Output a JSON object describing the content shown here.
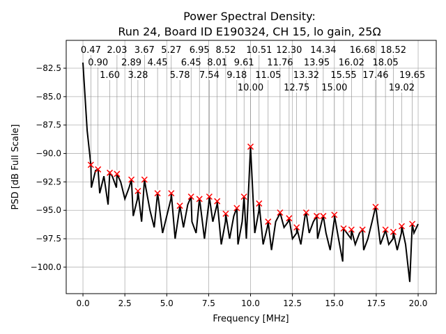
{
  "chart_data": {
    "type": "line",
    "title_line1": "Power Spectral Density:",
    "title_line2": "Run 24, Board ID E190324, CH 15, lo gain, 25Ω",
    "xlabel": "Frequency [MHz]",
    "ylabel": "PSD [dB Full Scale]",
    "xlim": [
      -1.0,
      21.08
    ],
    "ylim": [
      -102.33,
      -80.05
    ],
    "grid": true,
    "xticks": [
      0.0,
      2.5,
      5.0,
      7.5,
      10.0,
      12.5,
      15.0,
      17.5,
      20.0
    ],
    "xtick_labels": [
      "0.0",
      "2.5",
      "5.0",
      "7.5",
      "10.0",
      "12.5",
      "15.0",
      "17.5",
      "20.0"
    ],
    "yticks": [
      -82.5,
      -85.0,
      -87.5,
      -90.0,
      -92.5,
      -95.0,
      -97.5,
      -100.0
    ],
    "ytick_labels": [
      "−82.5",
      "−85.0",
      "−87.5",
      "−90.0",
      "−92.5",
      "−95.0",
      "−97.5",
      "−100.0"
    ],
    "line_color": "#000000",
    "marker_color": "#ff0000",
    "series_step": 0.25,
    "series": [
      -82.0,
      -88,
      -93,
      -91.5,
      -93.5,
      -92,
      -94.5,
      -92,
      -93,
      -92.5,
      -94,
      -93,
      -95.5,
      -94,
      -96,
      -93,
      -95,
      -96.5,
      -94,
      -97,
      -95.5,
      -94,
      -97.5,
      -95,
      -96.5,
      -94.5,
      -96,
      -97,
      -94.5,
      -97.5,
      -94.5,
      -96,
      -94.5,
      -98,
      -96,
      -97.5,
      -95.5,
      -98,
      -96,
      -97.5,
      -89.4,
      -97,
      -95,
      -98,
      -96.5,
      -98.5,
      -96,
      -95.3,
      -96.5,
      -96,
      -97.5,
      -97,
      -98,
      -95.5,
      -97,
      -96,
      -97.5,
      -96,
      -97,
      -98.5,
      -95.8,
      -97.5,
      -99.5,
      -97,
      -97.5,
      -98,
      -97,
      -98.5,
      -97.5,
      -96,
      -95,
      -98,
      -97,
      -98,
      -97.5,
      -98.5,
      -97,
      -98,
      -101.3,
      -97,
      -96.2
    ],
    "peaks": [
      {
        "label": "0.47",
        "x": 0.47,
        "y": -91.0
      },
      {
        "label": "0.90",
        "x": 0.9,
        "y": -91.4
      },
      {
        "label": "1.60",
        "x": 1.6,
        "y": -91.7
      },
      {
        "label": "2.03",
        "x": 2.03,
        "y": -91.8
      },
      {
        "label": "2.89",
        "x": 2.89,
        "y": -92.3
      },
      {
        "label": "3.28",
        "x": 3.28,
        "y": -93.3
      },
      {
        "label": "3.67",
        "x": 3.67,
        "y": -92.3
      },
      {
        "label": "4.45",
        "x": 4.45,
        "y": -93.5
      },
      {
        "label": "5.27",
        "x": 5.27,
        "y": -93.5
      },
      {
        "label": "5.78",
        "x": 5.78,
        "y": -94.6
      },
      {
        "label": "6.45",
        "x": 6.45,
        "y": -93.8
      },
      {
        "label": "6.95",
        "x": 6.95,
        "y": -94.0
      },
      {
        "label": "7.54",
        "x": 7.54,
        "y": -93.8
      },
      {
        "label": "8.01",
        "x": 8.01,
        "y": -94.2
      },
      {
        "label": "8.52",
        "x": 8.52,
        "y": -95.3
      },
      {
        "label": "9.18",
        "x": 9.18,
        "y": -94.8
      },
      {
        "label": "9.61",
        "x": 9.61,
        "y": -93.8
      },
      {
        "label": "10.00",
        "x": 10.0,
        "y": -89.4
      },
      {
        "label": "10.51",
        "x": 10.51,
        "y": -94.4
      },
      {
        "label": "11.05",
        "x": 11.05,
        "y": -96.0
      },
      {
        "label": "11.76",
        "x": 11.76,
        "y": -95.2
      },
      {
        "label": "12.30",
        "x": 12.3,
        "y": -95.7
      },
      {
        "label": "12.75",
        "x": 12.75,
        "y": -96.5
      },
      {
        "label": "13.32",
        "x": 13.32,
        "y": -95.2
      },
      {
        "label": "13.95",
        "x": 13.95,
        "y": -95.5
      },
      {
        "label": "14.34",
        "x": 14.34,
        "y": -95.5
      },
      {
        "label": "15.00",
        "x": 15.0,
        "y": -95.4
      },
      {
        "label": "15.55",
        "x": 15.55,
        "y": -96.6
      },
      {
        "label": "16.02",
        "x": 16.02,
        "y": -96.7
      },
      {
        "label": "16.68",
        "x": 16.68,
        "y": -96.7
      },
      {
        "label": "17.46",
        "x": 17.46,
        "y": -94.7
      },
      {
        "label": "18.05",
        "x": 18.05,
        "y": -96.7
      },
      {
        "label": "18.52",
        "x": 18.52,
        "y": -96.9
      },
      {
        "label": "19.02",
        "x": 19.02,
        "y": -96.4
      },
      {
        "label": "19.65",
        "x": 19.65,
        "y": -96.2
      }
    ]
  }
}
